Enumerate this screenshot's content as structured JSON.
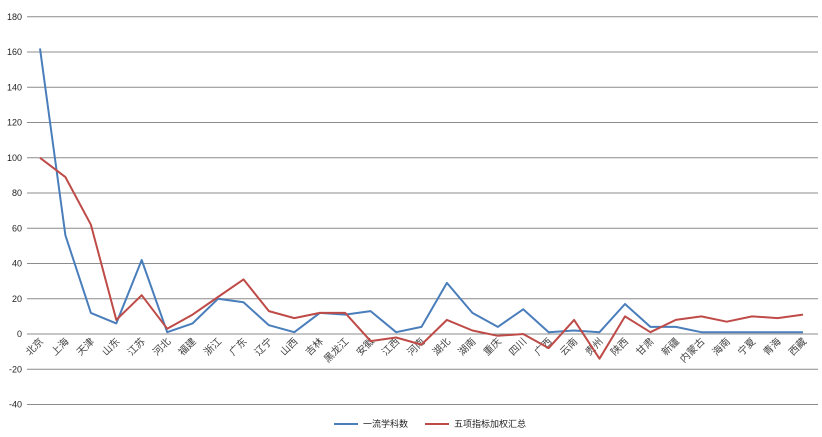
{
  "chart_data": {
    "type": "line",
    "title": "",
    "xlabel": "",
    "ylabel": "",
    "ylim": [
      -40,
      180
    ],
    "yticks": [
      -40,
      -20,
      0,
      20,
      40,
      60,
      80,
      100,
      120,
      140,
      160,
      180
    ],
    "grid": true,
    "legend_position": "bottom",
    "categories": [
      "北京",
      "上海",
      "天津",
      "山东",
      "江苏",
      "河北",
      "福建",
      "浙江",
      "广东",
      "辽宁",
      "山西",
      "吉林",
      "黑龙江",
      "安徽",
      "江西",
      "河南",
      "湖北",
      "湖南",
      "重庆",
      "四川",
      "广西",
      "云南",
      "贵州",
      "陕西",
      "甘肃",
      "新疆",
      "内蒙古",
      "海南",
      "宁夏",
      "青海",
      "西藏"
    ],
    "series": [
      {
        "name": "一流学科数",
        "color": "#4a7ebb",
        "values": [
          162,
          56,
          12,
          6,
          42,
          1,
          6,
          20,
          18,
          5,
          1,
          12,
          11,
          13,
          1,
          4,
          29,
          12,
          4,
          14,
          1,
          2,
          1,
          17,
          4,
          4,
          1,
          1,
          1,
          1,
          1
        ]
      },
      {
        "name": "五项指标加权汇总",
        "color": "#be4b48",
        "values": [
          100,
          89,
          62,
          8,
          22,
          3,
          11,
          21,
          31,
          13,
          9,
          12,
          12,
          -4,
          -2,
          -6,
          8,
          2,
          -1,
          0,
          -8,
          8,
          -14,
          10,
          1,
          8,
          10,
          7,
          10,
          9,
          11
        ]
      }
    ]
  }
}
